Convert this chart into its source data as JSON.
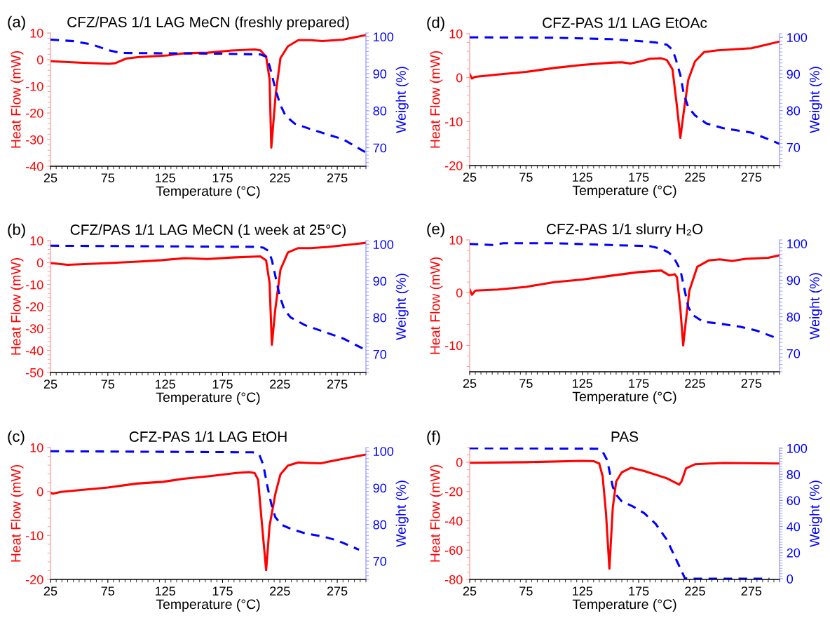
{
  "chart_data": [
    {
      "type": "line",
      "title": "CFZ/PAS 1/1 LAG MeCN (freshly prepared)",
      "xlabel": "Temperature (°C)",
      "ylabel": "Heat Flow (mW)",
      "y2label": "Weight (%)",
      "annotations": [
        "(a)"
      ],
      "xlim": [
        25,
        300
      ],
      "xticks": [
        25,
        75,
        125,
        175,
        225,
        275
      ],
      "ylim": [
        -40,
        10
      ],
      "yticks": [
        -40,
        -30,
        -20,
        -10,
        0,
        10
      ],
      "y2lim": [
        65,
        101
      ],
      "y2ticks": [
        70,
        80,
        90,
        100
      ],
      "series": [
        {
          "color": "#ff0000",
          "line_style": "solid",
          "x": [
            25,
            50,
            76,
            81,
            91,
            101,
            127,
            142,
            162,
            183,
            203,
            208,
            213,
            216,
            217.5,
            221.5,
            225.5,
            232,
            241,
            252,
            262,
            280,
            300
          ],
          "values": [
            -0.6,
            -1.1,
            -1.6,
            -1.4,
            0.4,
            0.9,
            1.6,
            2.4,
            2.6,
            3.4,
            3.8,
            3.5,
            1.1,
            -7.3,
            -33,
            -12.3,
            0.6,
            5,
            7.3,
            7.3,
            7.0,
            7.5,
            9.2
          ]
        },
        {
          "color": "#0000ff",
          "line_style": "dashed",
          "axis": "y2",
          "x": [
            25,
            45,
            61,
            76,
            86,
            125,
            175,
            208,
            213,
            216,
            221.5,
            225.5,
            230,
            238,
            253,
            280,
            300
          ],
          "values": [
            99.2,
            98.8,
            97.9,
            96.3,
            95.6,
            95.5,
            95.4,
            95.2,
            94.6,
            92.1,
            85.4,
            81.5,
            78.6,
            76.5,
            74.9,
            72.3,
            68.7
          ]
        }
      ]
    },
    {
      "type": "line",
      "title": "CFZ/PAS 1/1 LAG MeCN (1 week at 25°C)",
      "xlabel": "Temperature (°C)",
      "ylabel": "Heat Flow (mW)",
      "y2label": "Weight (%)",
      "annotations": [
        "(b)"
      ],
      "xlim": [
        25,
        300
      ],
      "xticks": [
        25,
        75,
        125,
        175,
        225,
        275
      ],
      "ylim": [
        -50,
        10
      ],
      "yticks": [
        -50,
        -40,
        -30,
        -20,
        -10,
        0,
        10
      ],
      "y2lim": [
        65,
        101
      ],
      "y2ticks": [
        70,
        80,
        90,
        100
      ],
      "series": [
        {
          "color": "#ff0000",
          "line_style": "solid",
          "x": [
            25,
            40,
            76,
            101,
            122,
            142,
            162,
            183,
            208,
            213,
            216,
            218,
            221,
            225.5,
            232,
            241,
            251.5,
            267,
            300
          ],
          "values": [
            -0.2,
            -1.0,
            -0.2,
            0.4,
            1.1,
            2.0,
            1.6,
            2.3,
            2.8,
            1.0,
            -9.2,
            -37.4,
            -21.2,
            -3.2,
            4.6,
            6.6,
            6.6,
            7.1,
            9.0
          ]
        },
        {
          "color": "#0000ff",
          "line_style": "dashed",
          "axis": "y2",
          "x": [
            25,
            203,
            210.5,
            215,
            218,
            221,
            225,
            229,
            234.5,
            247,
            280,
            300
          ],
          "values": [
            99.6,
            99.3,
            99.1,
            98.2,
            95.7,
            91.4,
            85.7,
            82.1,
            80,
            77.9,
            74.3,
            71.1
          ]
        }
      ]
    },
    {
      "type": "line",
      "title": "CFZ-PAS 1/1 LAG EtOH",
      "xlabel": "Temperature (°C)",
      "ylabel": "Heat Flow (mW)",
      "y2label": "Weight (%)",
      "annotations": [
        "(c)"
      ],
      "xlim": [
        25,
        300
      ],
      "xticks": [
        25,
        75,
        125,
        175,
        225,
        275
      ],
      "ylim": [
        -20,
        10
      ],
      "yticks": [
        -20,
        -10,
        0,
        10
      ],
      "y2lim": [
        65,
        101
      ],
      "y2ticks": [
        70,
        80,
        90,
        100
      ],
      "series": [
        {
          "color": "#ff0000",
          "line_style": "solid",
          "x": [
            25,
            27,
            34,
            50,
            75,
            100,
            123,
            141,
            164,
            187,
            198,
            203,
            206,
            209.5,
            213,
            216,
            221,
            225.5,
            232,
            241,
            250.5,
            260.5,
            275.5,
            300
          ],
          "values": [
            -0.3,
            -0.5,
            -0.1,
            0.3,
            0.9,
            1.8,
            2.2,
            2.9,
            3.5,
            4.2,
            4.4,
            4.2,
            2.7,
            -7.8,
            -17.9,
            -7.8,
            -0.6,
            3.9,
            5.9,
            6.6,
            6.5,
            6.4,
            7.2,
            8.4
          ]
        },
        {
          "color": "#0000ff",
          "line_style": "dashed",
          "axis": "y2",
          "x": [
            25,
            201.5,
            207,
            210.5,
            214,
            217.5,
            221,
            226.5,
            234.5,
            246,
            264,
            275.5,
            294
          ],
          "values": [
            100,
            99.7,
            99.1,
            96.3,
            90.6,
            85.6,
            82,
            79.9,
            78.8,
            77.7,
            76.6,
            75.6,
            73.1
          ]
        }
      ]
    },
    {
      "type": "line",
      "title": "CFZ-PAS 1/1 LAG EtOAc",
      "xlabel": "Temperature (°C)",
      "ylabel": "Heat Flow (mW)",
      "y2label": "Weight (%)",
      "annotations": [
        "(d)"
      ],
      "xlim": [
        25,
        300
      ],
      "xticks": [
        25,
        75,
        125,
        175,
        225,
        275
      ],
      "ylim": [
        -20,
        10
      ],
      "yticks": [
        -20,
        -10,
        0,
        10
      ],
      "y2lim": [
        65,
        101
      ],
      "y2ticks": [
        70,
        80,
        90,
        100
      ],
      "series": [
        {
          "color": "#ff0000",
          "line_style": "solid",
          "x": [
            25,
            27,
            30,
            50,
            75,
            100,
            125,
            150,
            160,
            168,
            175,
            185,
            195,
            200,
            205,
            209,
            212,
            215,
            219,
            225,
            233,
            245,
            275,
            285,
            300
          ],
          "values": [
            0.8,
            -0.2,
            0.2,
            0.7,
            1.3,
            2.2,
            2.9,
            3.4,
            3.5,
            3.2,
            3.6,
            4.3,
            4.4,
            4.0,
            1.9,
            -6.6,
            -13.7,
            -7.8,
            -0.5,
            3.7,
            5.8,
            6.2,
            6.7,
            7.3,
            8.2
          ]
        },
        {
          "color": "#0000ff",
          "line_style": "dashed",
          "axis": "y2",
          "x": [
            25,
            100,
            150,
            175,
            190,
            200,
            205,
            208,
            212,
            215,
            219,
            225,
            235,
            250,
            275,
            290,
            300
          ],
          "values": [
            100,
            99.9,
            99.5,
            99.0,
            98.6,
            98.0,
            96.6,
            94,
            89.7,
            84.6,
            80.9,
            78.7,
            76.5,
            75.2,
            74.0,
            72.2,
            70.9
          ]
        }
      ]
    },
    {
      "type": "line",
      "title": "CFZ-PAS 1/1 slurry H₂O",
      "xlabel": "Temperature (°C)",
      "ylabel": "Heat Flow (mW)",
      "y2label": "Weight (%)",
      "annotations": [
        "(e)"
      ],
      "xlim": [
        25,
        300
      ],
      "xticks": [
        25,
        75,
        125,
        175,
        225,
        275
      ],
      "ylim": [
        -15,
        10
      ],
      "yticks": [
        -10,
        0,
        10
      ],
      "y2lim": [
        65,
        101
      ],
      "y2ticks": [
        70,
        80,
        90,
        100
      ],
      "series": [
        {
          "color": "#ff0000",
          "line_style": "solid",
          "x": [
            25,
            27,
            30,
            50,
            75,
            100,
            125,
            150,
            175,
            195,
            202,
            207,
            209,
            212,
            214.5,
            217,
            220,
            227,
            237,
            247,
            258,
            270,
            290,
            300
          ],
          "values": [
            0.6,
            -0.4,
            0.4,
            0.6,
            1.1,
            2.0,
            2.5,
            3.2,
            3.9,
            4.2,
            3.3,
            3.5,
            2.9,
            -3.1,
            -10,
            -5.1,
            0.4,
            4.9,
            6.1,
            6.3,
            6.0,
            6.4,
            6.6,
            7.1
          ]
        },
        {
          "color": "#0000ff",
          "line_style": "dashed",
          "axis": "y2",
          "x": [
            25,
            45,
            55,
            100,
            150,
            185,
            195,
            202,
            207,
            212,
            216,
            219,
            223,
            232,
            250,
            265,
            280,
            300
          ],
          "values": [
            99.9,
            99.6,
            100.1,
            100.1,
            99.6,
            99.3,
            98.6,
            97.5,
            95.7,
            92.8,
            87,
            82.7,
            80.5,
            78.7,
            78.0,
            77.3,
            76.2,
            73.9
          ]
        }
      ]
    },
    {
      "type": "line",
      "title": "PAS",
      "xlabel": "Temperature (°C)",
      "ylabel": "Heat Flow (mW)",
      "y2label": "Weight (%)",
      "annotations": [
        "(f)"
      ],
      "xlim": [
        25,
        300
      ],
      "xticks": [
        25,
        75,
        125,
        175,
        225,
        275
      ],
      "ylim": [
        -80,
        10
      ],
      "yticks": [
        -80,
        -60,
        -40,
        -20,
        0
      ],
      "y2lim": [
        -0.5,
        100.5
      ],
      "y2ticks": [
        0,
        20,
        40,
        60,
        80,
        100
      ],
      "series": [
        {
          "color": "#ff0000",
          "line_style": "solid",
          "x": [
            25,
            75,
            125,
            135,
            140,
            143,
            146,
            149,
            152,
            155,
            160,
            168,
            180,
            200,
            211,
            213,
            217,
            225,
            250,
            300
          ],
          "values": [
            -0.4,
            0,
            0.9,
            0.7,
            -0.9,
            -9.6,
            -34.8,
            -72.7,
            -31.2,
            -13.2,
            -6.9,
            -3.8,
            -6.0,
            -11.0,
            -15.3,
            -13.2,
            -4.2,
            -1.4,
            -0.5,
            -0.9
          ]
        },
        {
          "color": "#0000ff",
          "line_style": "dashed",
          "axis": "y2",
          "x": [
            25,
            140,
            143,
            147,
            150,
            152,
            155,
            160,
            170,
            180,
            190,
            200,
            210,
            216,
            222,
            291
          ],
          "values": [
            100,
            99.6,
            97.4,
            90.9,
            78.7,
            70.5,
            64.4,
            59.3,
            55.3,
            50.2,
            42.1,
            29.9,
            11.6,
            0.4,
            0,
            0
          ]
        }
      ]
    }
  ]
}
